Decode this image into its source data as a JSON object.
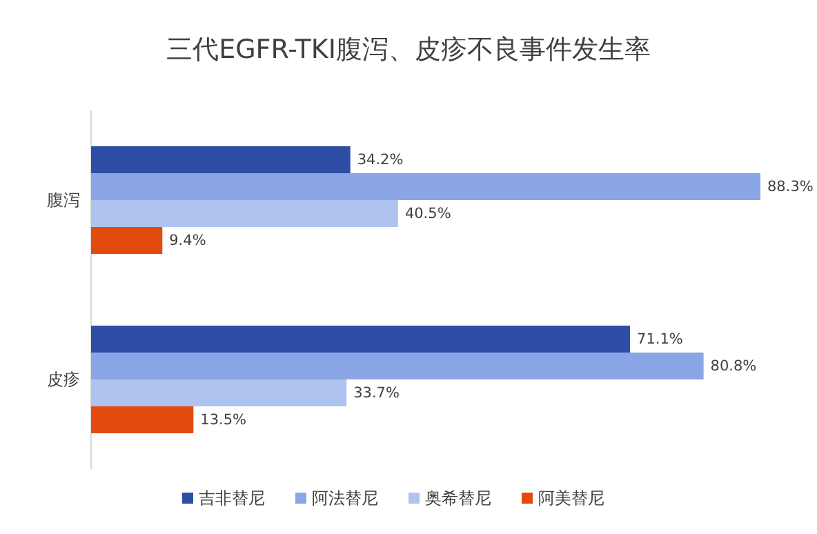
{
  "chart_data": {
    "type": "bar",
    "orientation": "horizontal",
    "title": "三代EGFR-TKI腹泻、皮疹不良事件发生率",
    "categories": [
      "腹泻",
      "皮疹"
    ],
    "series": [
      {
        "name": "吉非替尼",
        "color": "#2e4ea6",
        "values": [
          34.2,
          71.1
        ],
        "value_labels": [
          "34.2%",
          "71.1%"
        ]
      },
      {
        "name": "阿法替尼",
        "color": "#8aa6e6",
        "values": [
          88.3,
          80.8
        ],
        "value_labels": [
          "88.3%",
          "80.8%"
        ]
      },
      {
        "name": "奥希替尼",
        "color": "#aec4ef",
        "values": [
          40.5,
          33.7
        ],
        "value_labels": [
          "40.5%",
          "33.7%"
        ]
      },
      {
        "name": "阿美替尼",
        "color": "#e34a0e",
        "values": [
          9.4,
          13.5
        ],
        "value_labels": [
          "9.4%",
          "13.5%"
        ]
      }
    ],
    "legend": "bottom"
  }
}
